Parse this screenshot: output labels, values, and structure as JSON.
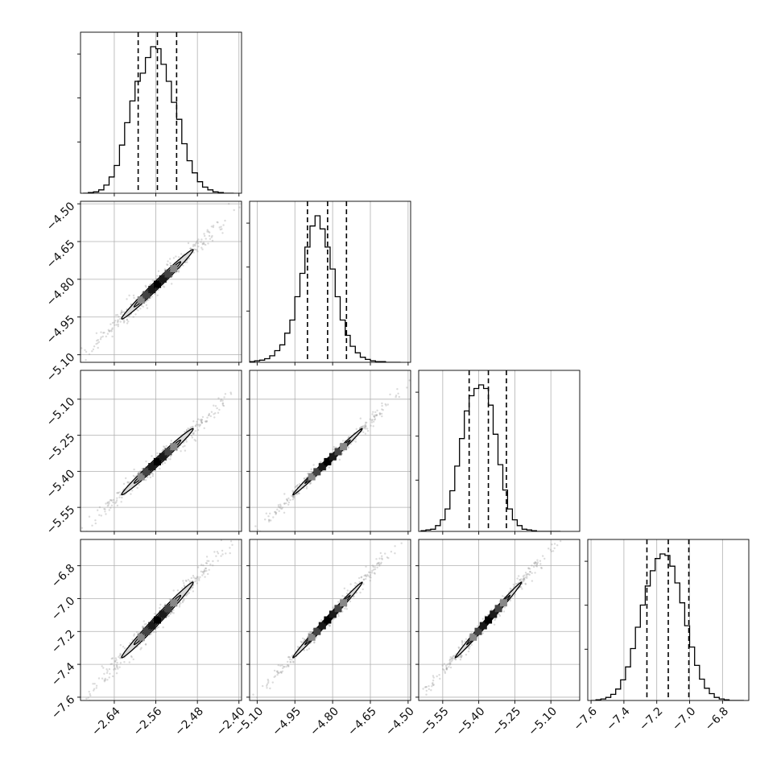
{
  "chart_data": {
    "type": "corner",
    "parameters": 4,
    "grid": true,
    "colors": {
      "frame": "#000000",
      "grid": "#b0b0b0",
      "points": "#999999",
      "contour_fill": "#d9d9d9",
      "contour_line": "#000000"
    },
    "axes": [
      {
        "range": [
          -2.705,
          -2.395
        ],
        "ticks": [
          -2.64,
          -2.56,
          -2.48,
          -2.4
        ],
        "tick_labels": [
          "−2.64",
          "−2.56",
          "−2.48",
          "−2.40"
        ]
      },
      {
        "range": [
          -5.13,
          -4.49
        ],
        "ticks": [
          -5.1,
          -4.95,
          -4.8,
          -4.65,
          -4.5
        ],
        "tick_labels": [
          "−5.10",
          "−4.95",
          "−4.80",
          "−4.65",
          "−4.50"
        ]
      },
      {
        "range": [
          -5.65,
          -4.98
        ],
        "ticks": [
          -5.55,
          -5.4,
          -5.25,
          -5.1
        ],
        "tick_labels": [
          "−5.55",
          "−5.40",
          "−5.25",
          "−5.10"
        ]
      },
      {
        "range": [
          -7.62,
          -6.64
        ],
        "ticks": [
          -7.6,
          -7.4,
          -7.2,
          -7.0,
          -6.8
        ],
        "tick_labels": [
          "−7.6",
          "−7.4",
          "−7.2",
          "−7.0",
          "−6.8"
        ]
      }
    ],
    "diagonal_histograms": [
      {
        "quantiles": [
          -2.594,
          -2.557,
          -2.52
        ],
        "bins": [
          -2.7,
          -2.69,
          -2.68,
          -2.67,
          -2.66,
          -2.65,
          -2.64,
          -2.63,
          -2.62,
          -2.61,
          -2.6,
          -2.59,
          -2.58,
          -2.57,
          -2.56,
          -2.55,
          -2.54,
          -2.53,
          -2.52,
          -2.51,
          -2.5,
          -2.49,
          -2.48,
          -2.47,
          -2.46,
          -2.45,
          -2.44,
          -2.43,
          -2.42,
          -2.41
        ],
        "counts": [
          0,
          1,
          2,
          5,
          12,
          24,
          41,
          71,
          104,
          136,
          165,
          177,
          200,
          216,
          213,
          190,
          165,
          134,
          109,
          73,
          48,
          30,
          17,
          9,
          5,
          2,
          1,
          0,
          0
        ]
      },
      {
        "quantiles": [
          -4.9,
          -4.82,
          -4.745
        ],
        "bins": [
          -5.13,
          -5.11,
          -5.09,
          -5.07,
          -5.05,
          -5.03,
          -5.01,
          -4.99,
          -4.97,
          -4.95,
          -4.93,
          -4.91,
          -4.89,
          -4.87,
          -4.85,
          -4.83,
          -4.81,
          -4.79,
          -4.77,
          -4.75,
          -4.73,
          -4.71,
          -4.69,
          -4.67,
          -4.65,
          -4.63,
          -4.61,
          -4.59,
          -4.57,
          -4.55,
          -4.53
        ],
        "counts": [
          1,
          2,
          3,
          5,
          9,
          16,
          24,
          40,
          58,
          90,
          122,
          158,
          187,
          201,
          183,
          158,
          128,
          90,
          58,
          37,
          22,
          13,
          7,
          4,
          2,
          1,
          1,
          0,
          0,
          0
        ]
      },
      {
        "quantiles": [
          -5.44,
          -5.36,
          -5.285
        ],
        "bins": [
          -5.64,
          -5.62,
          -5.6,
          -5.58,
          -5.56,
          -5.54,
          -5.52,
          -5.5,
          -5.48,
          -5.46,
          -5.44,
          -5.42,
          -5.4,
          -5.38,
          -5.36,
          -5.34,
          -5.32,
          -5.3,
          -5.28,
          -5.26,
          -5.24,
          -5.22,
          -5.2,
          -5.18,
          -5.16,
          -5.14,
          -5.12,
          -5.1,
          -5.08,
          -5.06
        ],
        "counts": [
          1,
          2,
          3,
          8,
          16,
          31,
          56,
          90,
          128,
          166,
          187,
          197,
          202,
          197,
          174,
          134,
          92,
          57,
          31,
          16,
          8,
          3,
          2,
          1,
          0,
          0,
          0,
          0,
          0
        ]
      },
      {
        "quantiles": [
          -7.26,
          -7.13,
          -7.005
        ],
        "bins": [
          -7.6,
          -7.57,
          -7.54,
          -7.51,
          -7.48,
          -7.45,
          -7.42,
          -7.39,
          -7.36,
          -7.33,
          -7.3,
          -7.27,
          -7.24,
          -7.21,
          -7.18,
          -7.15,
          -7.12,
          -7.09,
          -7.06,
          -7.03,
          -7.0,
          -6.97,
          -6.94,
          -6.91,
          -6.88,
          -6.85,
          -6.82,
          -6.79,
          -6.76,
          -6.73,
          -6.7,
          -6.67
        ],
        "counts": [
          0,
          1,
          2,
          4,
          8,
          15,
          27,
          44,
          68,
          96,
          125,
          150,
          170,
          186,
          192,
          190,
          176,
          154,
          128,
          98,
          70,
          46,
          28,
          16,
          9,
          4,
          2,
          1,
          0,
          0,
          0
        ]
      }
    ],
    "pair_contours": [
      {
        "row": 1,
        "col": 0,
        "center": [
          -2.557,
          -4.82
        ],
        "sd": [
          0.03,
          0.06
        ],
        "corr": 0.99
      },
      {
        "row": 2,
        "col": 0,
        "center": [
          -2.557,
          -5.36
        ],
        "sd": [
          0.03,
          0.06
        ],
        "corr": 0.99
      },
      {
        "row": 2,
        "col": 1,
        "center": [
          -4.82,
          -5.36
        ],
        "sd": [
          0.06,
          0.06
        ],
        "corr": 0.995
      },
      {
        "row": 3,
        "col": 0,
        "center": [
          -2.557,
          -7.13
        ],
        "sd": [
          0.03,
          0.1
        ],
        "corr": 0.99
      },
      {
        "row": 3,
        "col": 1,
        "center": [
          -4.82,
          -7.13
        ],
        "sd": [
          0.06,
          0.1
        ],
        "corr": 0.995
      },
      {
        "row": 3,
        "col": 2,
        "center": [
          -5.36,
          -7.13
        ],
        "sd": [
          0.06,
          0.1
        ],
        "corr": 0.995
      }
    ]
  }
}
